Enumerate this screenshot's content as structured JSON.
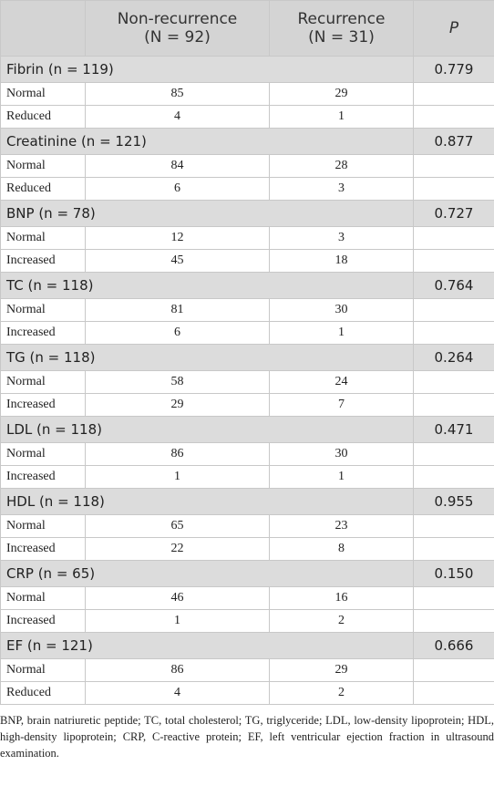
{
  "table": {
    "header": [
      [
        "Non-recurrence",
        "(N = 92)"
      ],
      [
        "Recurrence",
        "(N = 31)"
      ],
      [
        "P"
      ]
    ],
    "groups": [
      {
        "label": "Fibrin (n = 119)",
        "p": "0.779",
        "rows": [
          {
            "label": "Normal",
            "values": [
              85,
              29
            ]
          },
          {
            "label": "Reduced",
            "values": [
              4,
              1
            ]
          }
        ]
      },
      {
        "label": "Creatinine (n = 121)",
        "p": "0.877",
        "rows": [
          {
            "label": "Normal",
            "values": [
              84,
              28
            ]
          },
          {
            "label": "Reduced",
            "values": [
              6,
              3
            ]
          }
        ]
      },
      {
        "label": "BNP (n = 78)",
        "p": "0.727",
        "rows": [
          {
            "label": "Normal",
            "values": [
              12,
              3
            ]
          },
          {
            "label": "Increased",
            "values": [
              45,
              18
            ]
          }
        ]
      },
      {
        "label": "TC (n = 118)",
        "p": "0.764",
        "rows": [
          {
            "label": "Normal",
            "values": [
              81,
              30
            ]
          },
          {
            "label": "Increased",
            "values": [
              6,
              1
            ]
          }
        ]
      },
      {
        "label": "TG (n = 118)",
        "p": "0.264",
        "rows": [
          {
            "label": "Normal",
            "values": [
              58,
              24
            ]
          },
          {
            "label": "Increased",
            "values": [
              29,
              7
            ]
          }
        ]
      },
      {
        "label": "LDL (n = 118)",
        "p": "0.471",
        "rows": [
          {
            "label": "Normal",
            "values": [
              86,
              30
            ]
          },
          {
            "label": "Increased",
            "values": [
              1,
              1
            ]
          }
        ]
      },
      {
        "label": "HDL (n = 118)",
        "p": "0.955",
        "rows": [
          {
            "label": "Normal",
            "values": [
              65,
              23
            ]
          },
          {
            "label": "Increased",
            "values": [
              22,
              8
            ]
          }
        ]
      },
      {
        "label": "CRP (n = 65)",
        "p": "0.150",
        "rows": [
          {
            "label": "Normal",
            "values": [
              46,
              16
            ]
          },
          {
            "label": "Increased",
            "values": [
              1,
              2
            ]
          }
        ]
      },
      {
        "label": "EF (n = 121)",
        "p": "0.666",
        "rows": [
          {
            "label": "Normal",
            "values": [
              86,
              29
            ]
          },
          {
            "label": "Reduced",
            "values": [
              4,
              2
            ]
          }
        ]
      }
    ],
    "footnote": "BNP, brain natriuretic peptide; TC, total cholesterol; TG, triglyceride; LDL, low-density lipoprotein; HDL, high-density lipoprotein; CRP, C-reactive protein; EF, left ventricular ejection fraction in ultrasound examination."
  }
}
